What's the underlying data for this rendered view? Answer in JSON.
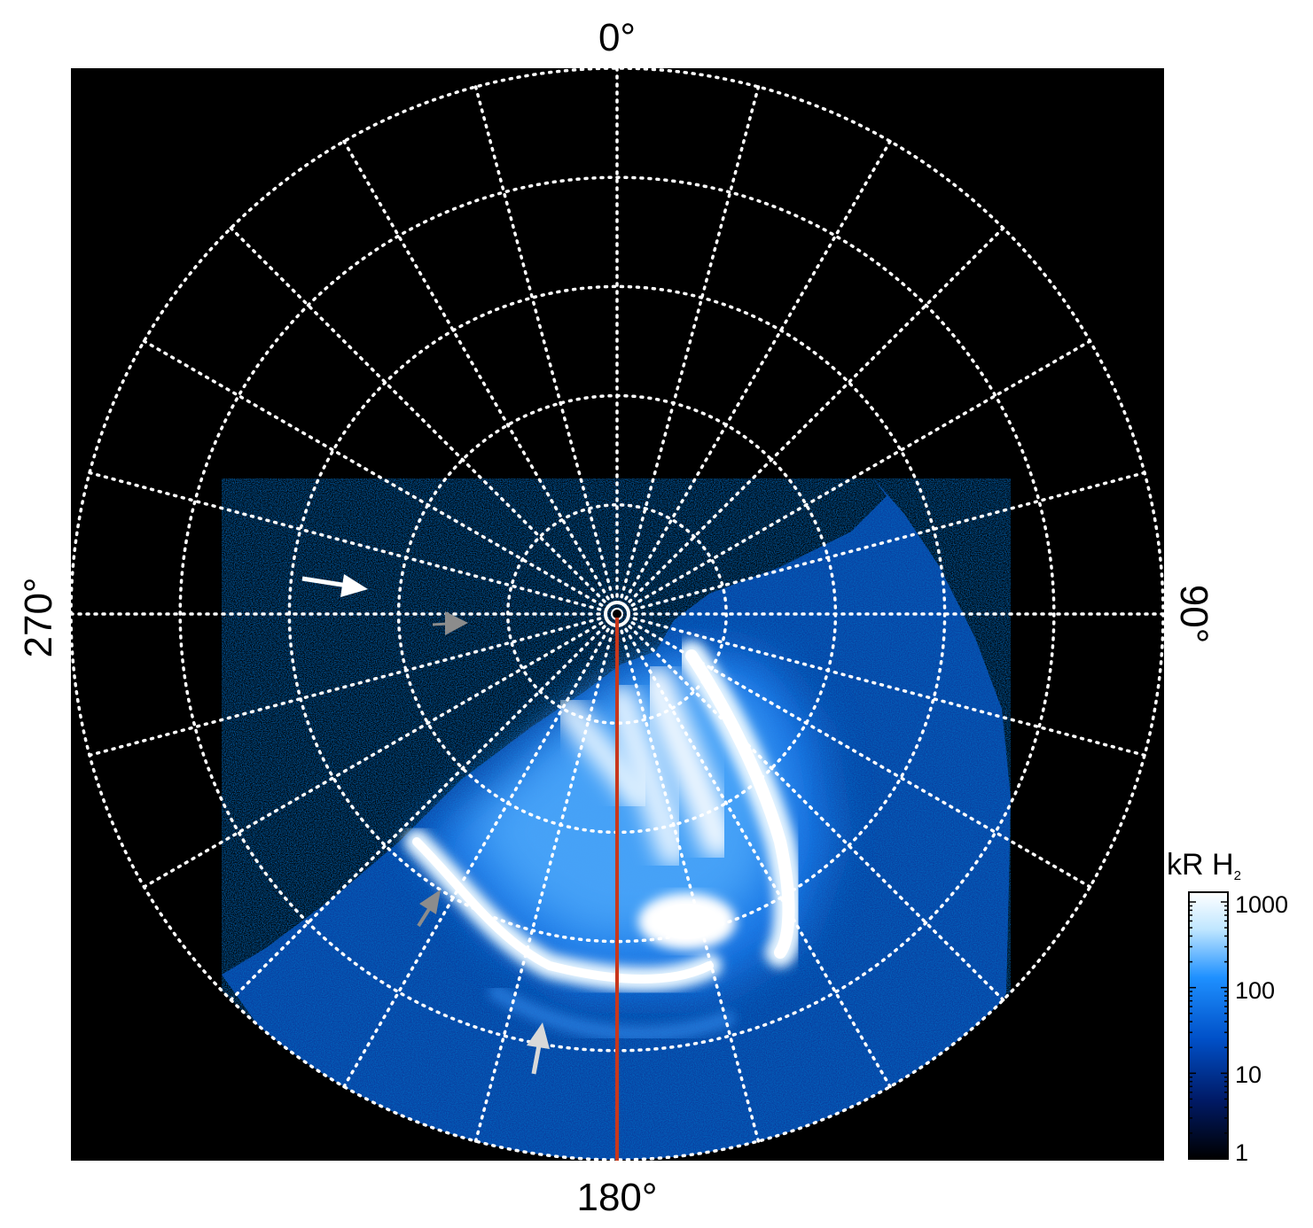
{
  "figure": {
    "direction_labels": {
      "top": "0°",
      "bottom": "180°",
      "left": "270°",
      "right": "90°"
    },
    "colorbar": {
      "title_main": "kR H",
      "title_sub": "2",
      "ticks": [
        "1000",
        "100",
        "10",
        "1"
      ],
      "tick_values": [
        1000,
        100,
        10,
        1
      ],
      "scale": "log",
      "colors": [
        "#000000",
        "#001a66",
        "#0050c8",
        "#1e90ff",
        "#bfe6ff",
        "#ffffff"
      ]
    },
    "colors": {
      "background": "#000000",
      "grid": "#ffffff",
      "meridian_line": "#c8381c",
      "arrow_white": "#ffffff",
      "arrow_gray": "#8c8c8c",
      "arrow_light": "#d8d8d8"
    },
    "grid": {
      "spokes_every_deg": 15,
      "rings": 5
    }
  }
}
